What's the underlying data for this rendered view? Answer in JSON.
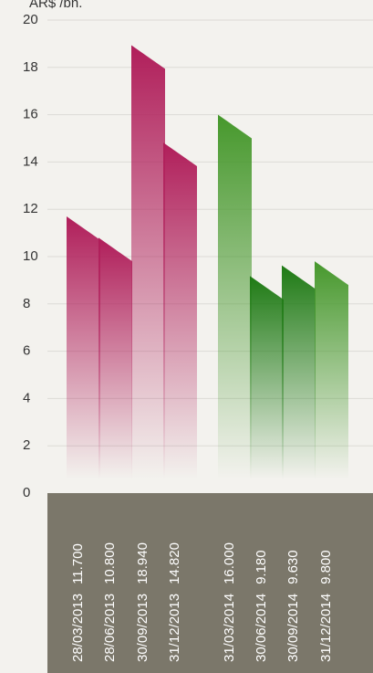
{
  "chart_data": {
    "type": "bar",
    "y_label": "AR$ /bn.",
    "categories": [
      "28/03/2013",
      "28/06/2013",
      "30/09/2013",
      "31/12/2013",
      "31/03/2014",
      "30/06/2014",
      "30/09/2014",
      "31/12/2014"
    ],
    "values": [
      11.7,
      10.8,
      18.94,
      14.82,
      16.0,
      9.18,
      9.63,
      9.8
    ],
    "value_labels": [
      "11.700",
      "10.800",
      "18.940",
      "14.820",
      "16.000",
      "9.180",
      "9.630",
      "9.800"
    ],
    "colors": [
      "#b01e5a",
      "#b01e5a",
      "#b01e5a",
      "#b01e5a",
      "#46982c",
      "#1e7a14",
      "#1e7a14",
      "#46982c"
    ],
    "ylim": [
      0,
      20
    ],
    "yticks": [
      0,
      2,
      4,
      6,
      8,
      10,
      12,
      14,
      16,
      18,
      20
    ],
    "grid": true
  }
}
